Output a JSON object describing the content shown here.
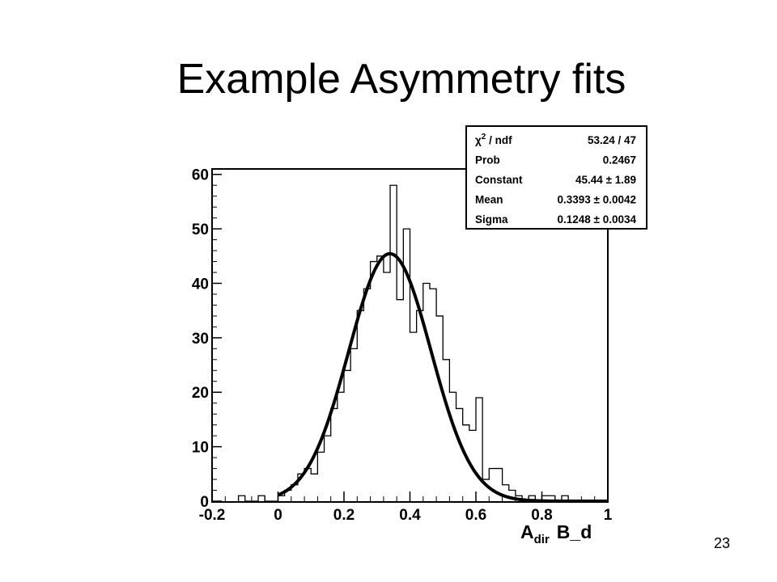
{
  "slide": {
    "title": "Example Asymmetry fits",
    "page_number": "23"
  },
  "chart_data": {
    "type": "histogram",
    "bin_width": 0.02,
    "bin_low_edges": [
      -0.12,
      -0.1,
      -0.08,
      -0.06,
      -0.04,
      -0.02,
      0.0,
      0.02,
      0.04,
      0.06,
      0.08,
      0.1,
      0.12,
      0.14,
      0.16,
      0.18,
      0.2,
      0.22,
      0.24,
      0.26,
      0.28,
      0.3,
      0.32,
      0.34,
      0.36,
      0.38,
      0.4,
      0.42,
      0.44,
      0.46,
      0.48,
      0.5,
      0.52,
      0.54,
      0.56,
      0.58,
      0.6,
      0.62,
      0.64,
      0.66,
      0.68,
      0.7,
      0.72,
      0.74,
      0.76,
      0.78,
      0.8,
      0.82,
      0.84,
      0.86,
      0.88,
      0.9
    ],
    "counts": [
      1,
      0,
      0,
      1,
      0,
      0,
      1,
      2,
      3,
      5,
      6,
      5,
      9,
      12,
      17,
      20,
      24,
      28,
      35,
      39,
      44,
      45,
      42,
      58,
      37,
      50,
      31,
      35,
      40,
      39,
      34,
      26,
      20,
      17,
      14,
      13,
      19,
      4,
      6,
      6,
      3,
      2,
      1,
      0,
      1,
      0,
      1,
      1,
      0,
      1,
      0,
      0
    ],
    "fit": {
      "function": "gaus",
      "constant": 45.44,
      "mean": 0.3393,
      "sigma": 0.1248,
      "x_range": [
        0,
        1
      ]
    },
    "stats_box": [
      {
        "label_main": "χ",
        "label_sup": "2",
        "label_rest": " / ndf",
        "value": "53.24 / 47"
      },
      {
        "label_main": "Prob",
        "label_sup": "",
        "label_rest": "",
        "value": "0.2467"
      },
      {
        "label_main": "Constant",
        "label_sup": "",
        "label_rest": "",
        "value": "45.44 ± 1.89"
      },
      {
        "label_main": "Mean",
        "label_sup": "",
        "label_rest": "",
        "value": "0.3393 ± 0.0042"
      },
      {
        "label_main": "Sigma",
        "label_sup": "",
        "label_rest": "",
        "value": "0.1248 ± 0.0034"
      }
    ],
    "x_ticks": [
      -0.2,
      0,
      0.2,
      0.4,
      0.6,
      0.8,
      1
    ],
    "x_tick_labels": [
      "-0.2",
      "0",
      "0.2",
      "0.4",
      "0.6",
      "0.8",
      "1"
    ],
    "y_ticks": [
      0,
      10,
      20,
      30,
      40,
      50,
      60
    ],
    "y_tick_labels": [
      "0",
      "10",
      "20",
      "30",
      "40",
      "50",
      "60"
    ],
    "xlim": [
      -0.2,
      1.0
    ],
    "ylim": [
      0,
      61
    ],
    "xlabel_main": "A",
    "xlabel_sub": "dir",
    "xlabel_rest": "B_d",
    "ylabel": "",
    "title": ""
  }
}
